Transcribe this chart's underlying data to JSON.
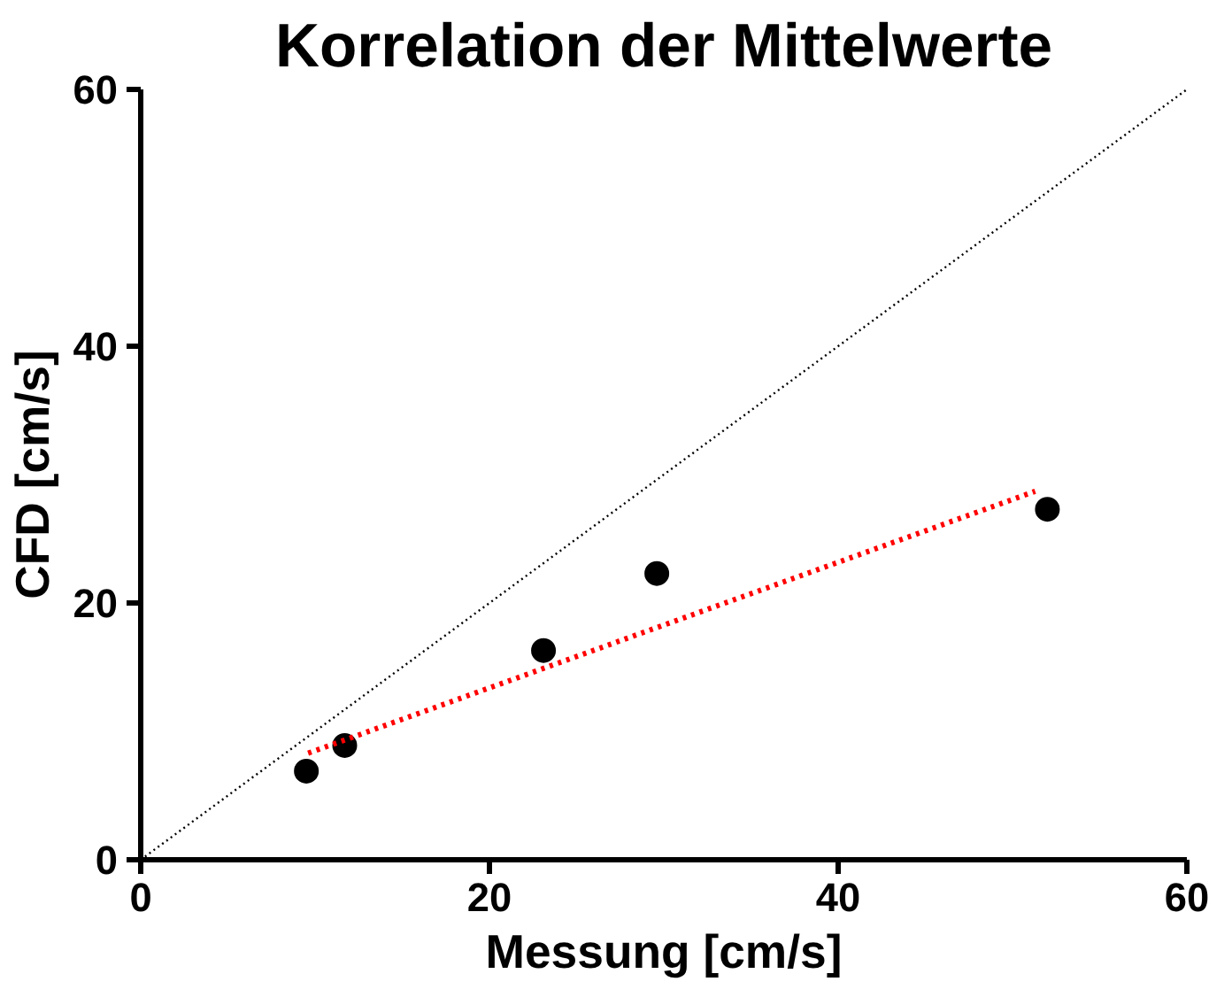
{
  "chart_data": {
    "type": "scatter",
    "title": "Korrelation der Mittelwerte",
    "xlabel": "Messung [cm/s]",
    "ylabel": "CFD [cm/s]",
    "xlim": [
      0,
      60
    ],
    "ylim": [
      0,
      60
    ],
    "xticks": [
      0,
      20,
      40,
      60
    ],
    "yticks": [
      0,
      20,
      40,
      60
    ],
    "grid": false,
    "marker": "circle",
    "series": [
      {
        "color": "#000000",
        "x": [
          9.5,
          11.7,
          23.1,
          29.6,
          52.0
        ],
        "values": [
          6.9,
          8.9,
          16.3,
          22.3,
          27.3
        ]
      },
      {
        "type": "line",
        "color": "#ff0000",
        "line_style": "dotted",
        "marker": "none",
        "x": [
          9.6,
          51.3
        ],
        "values": [
          8.3,
          28.7
        ]
      },
      {
        "type": "line",
        "color": "#000000",
        "line_style": "dotted",
        "marker": "none",
        "x": [
          0,
          60
        ],
        "values": [
          0,
          60
        ]
      }
    ]
  }
}
